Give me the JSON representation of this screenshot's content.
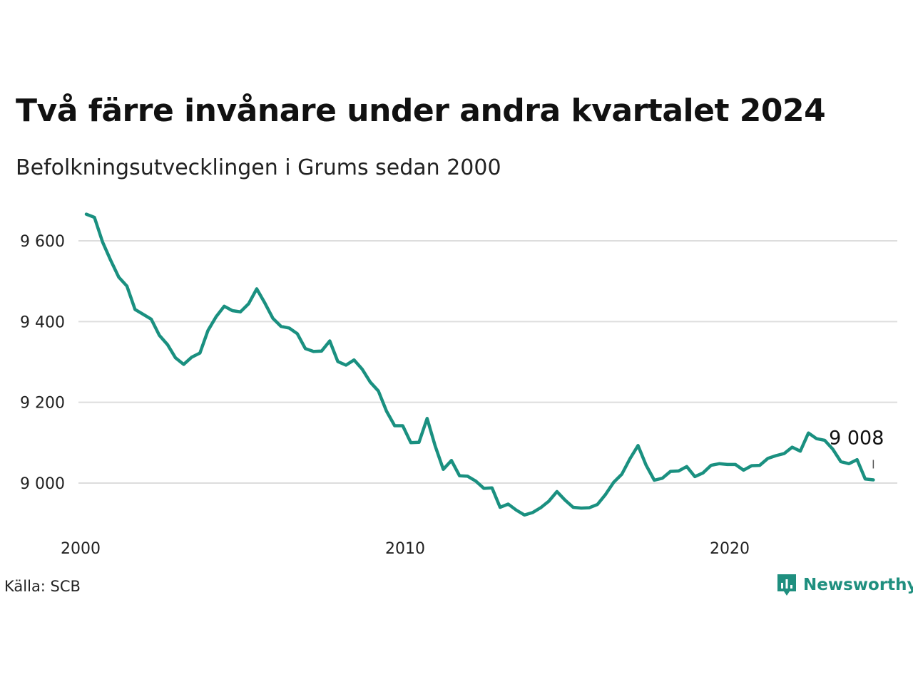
{
  "header": {
    "title": "Två färre invånare under andra kvartalet 2024",
    "subtitle": "Befolkningsutvecklingen i Grums sedan 2000"
  },
  "footer": {
    "source": "Källa: SCB",
    "brand": "Newsworthy",
    "brand_icon": "bar-chart-bubble-icon"
  },
  "colors": {
    "line": "#1a9080",
    "grid": "#dddddd",
    "text": "#111111",
    "brand": "#1f8f7f"
  },
  "chart_data": {
    "type": "line",
    "title": "Två färre invånare under andra kvartalet 2024",
    "subtitle": "Befolkningsutvecklingen i Grums sedan 2000",
    "xlabel": "",
    "ylabel": "",
    "x_ticks": [
      "2000",
      "2010",
      "2020"
    ],
    "y_ticks": [
      "9 000",
      "9 200",
      "9 400",
      "9 600"
    ],
    "y_tick_values": [
      9000,
      9200,
      9400,
      9600
    ],
    "ylim": [
      8880,
      9690
    ],
    "grid": true,
    "last_label": "9 008",
    "x": [
      "2000 Q1",
      "2000 Q2",
      "2000 Q3",
      "2000 Q4",
      "2001 Q1",
      "2001 Q2",
      "2001 Q3",
      "2001 Q4",
      "2002 Q1",
      "2002 Q2",
      "2002 Q3",
      "2002 Q4",
      "2003 Q1",
      "2003 Q2",
      "2003 Q3",
      "2003 Q4",
      "2004 Q1",
      "2004 Q2",
      "2004 Q3",
      "2004 Q4",
      "2005 Q1",
      "2005 Q2",
      "2005 Q3",
      "2005 Q4",
      "2006 Q1",
      "2006 Q2",
      "2006 Q3",
      "2006 Q4",
      "2007 Q1",
      "2007 Q2",
      "2007 Q3",
      "2007 Q4",
      "2008 Q1",
      "2008 Q2",
      "2008 Q3",
      "2008 Q4",
      "2009 Q1",
      "2009 Q2",
      "2009 Q3",
      "2009 Q4",
      "2010 Q1",
      "2010 Q2",
      "2010 Q3",
      "2010 Q4",
      "2011 Q1",
      "2011 Q2",
      "2011 Q3",
      "2011 Q4",
      "2012 Q1",
      "2012 Q2",
      "2012 Q3",
      "2012 Q4",
      "2013 Q1",
      "2013 Q2",
      "2013 Q3",
      "2013 Q4",
      "2014 Q1",
      "2014 Q2",
      "2014 Q3",
      "2014 Q4",
      "2015 Q1",
      "2015 Q2",
      "2015 Q3",
      "2015 Q4",
      "2016 Q1",
      "2016 Q2",
      "2016 Q3",
      "2016 Q4",
      "2017 Q1",
      "2017 Q2",
      "2017 Q3",
      "2017 Q4",
      "2018 Q1",
      "2018 Q2",
      "2018 Q3",
      "2018 Q4",
      "2019 Q1",
      "2019 Q2",
      "2019 Q3",
      "2019 Q4",
      "2020 Q1",
      "2020 Q2",
      "2020 Q3",
      "2020 Q4",
      "2021 Q1",
      "2021 Q2",
      "2021 Q3",
      "2021 Q4",
      "2022 Q1",
      "2022 Q2",
      "2022 Q3",
      "2022 Q4",
      "2023 Q1",
      "2023 Q2",
      "2023 Q3",
      "2023 Q4",
      "2024 Q1",
      "2024 Q2"
    ],
    "series": [
      {
        "values": [
          9666,
          9658,
          9597,
          9552,
          9510,
          9488,
          9430,
          9418,
          9406,
          9366,
          9343,
          9310,
          9294,
          9312,
          9322,
          9378,
          9412,
          9438,
          9427,
          9424,
          9444,
          9481,
          9446,
          9408,
          9388,
          9384,
          9370,
          9333,
          9326,
          9327,
          9352,
          9301,
          9292,
          9305,
          9282,
          9250,
          9228,
          9178,
          9142,
          9142,
          9100,
          9101,
          9160,
          9092,
          9034,
          9056,
          9018,
          9017,
          9005,
          8987,
          8988,
          8940,
          8948,
          8933,
          8921,
          8927,
          8939,
          8955,
          8979,
          8958,
          8940,
          8938,
          8939,
          8947,
          8972,
          9002,
          9022,
          9060,
          9093,
          9044,
          9007,
          9012,
          9029,
          9030,
          9041,
          9016,
          9025,
          9044,
          9048,
          9046,
          9046,
          9032,
          9043,
          9044,
          9061,
          9068,
          9073,
          9089,
          9079,
          9124,
          9110,
          9106,
          9084,
          9053,
          9048,
          9058,
          9010,
          9008
        ]
      }
    ]
  }
}
